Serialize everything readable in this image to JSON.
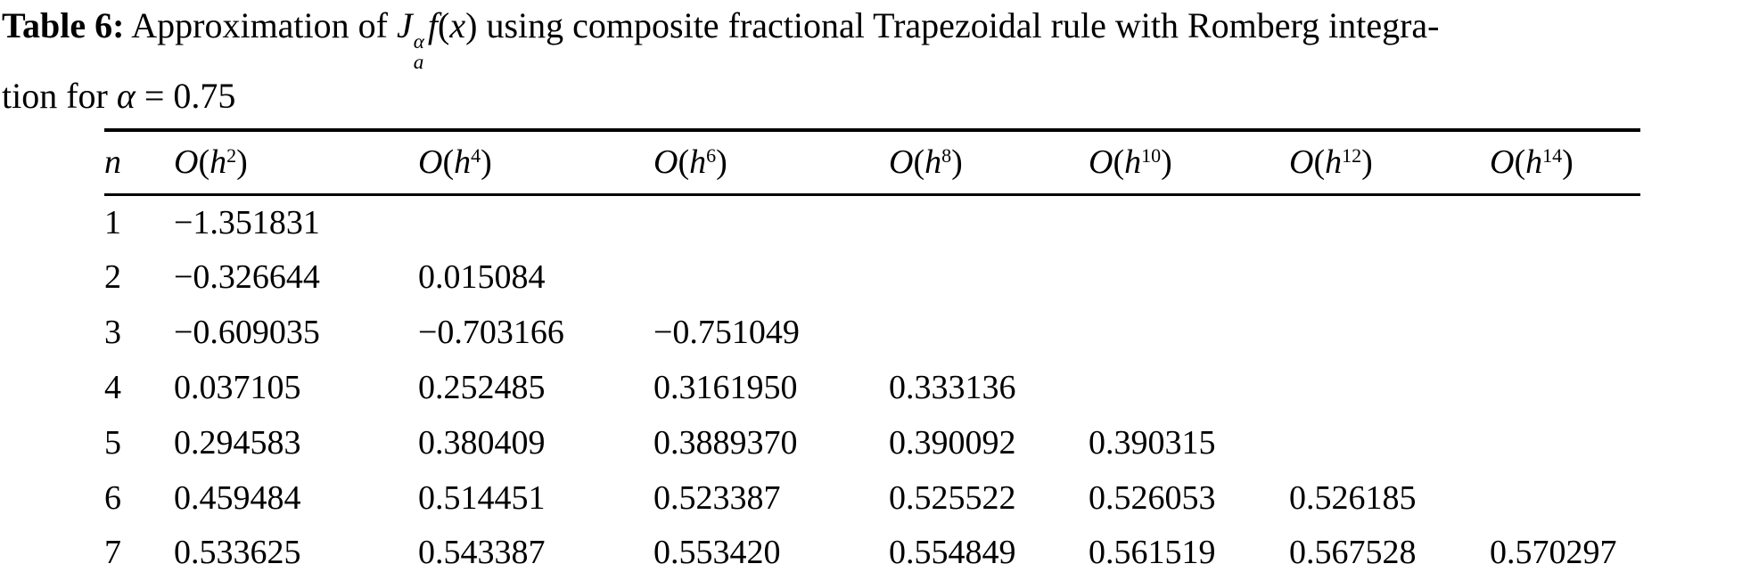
{
  "caption": {
    "label": "Table 6:",
    "line1_before_math": " Approximation of ",
    "math": {
      "base": "J",
      "sup": "α",
      "sub": "a",
      "func": "f",
      "arg_open": "(",
      "arg": "x",
      "arg_close": ")"
    },
    "line1_after_math": " using composite fractional Trapezoidal rule with Romberg integra-",
    "line2_before_alpha": "tion for ",
    "alpha": "α",
    "line2_after_alpha": " = 0.75"
  },
  "table": {
    "headers": [
      {
        "var": "n"
      },
      {
        "bigO": "O",
        "open": "(",
        "h": "h",
        "sup": "2",
        "close": ")"
      },
      {
        "bigO": "O",
        "open": "(",
        "h": "h",
        "sup": "4",
        "close": ")"
      },
      {
        "bigO": "O",
        "open": "(",
        "h": "h",
        "sup": "6",
        "close": ")"
      },
      {
        "bigO": "O",
        "open": "(",
        "h": "h",
        "sup": "8",
        "close": ")"
      },
      {
        "bigO": "O",
        "open": "(",
        "h": "h",
        "sup": "10",
        "close": ")"
      },
      {
        "bigO": "O",
        "open": "(",
        "h": "h",
        "sup": "12",
        "close": ")"
      },
      {
        "bigO": "O",
        "open": "(",
        "h": "h",
        "sup": "14",
        "close": ")"
      }
    ],
    "rows": [
      {
        "n": "1",
        "values": [
          "−1.351831",
          "",
          "",
          "",
          "",
          "",
          ""
        ]
      },
      {
        "n": "2",
        "values": [
          "−0.326644",
          "0.015084",
          "",
          "",
          "",
          "",
          ""
        ]
      },
      {
        "n": "3",
        "values": [
          "−0.609035",
          "−0.703166",
          "−0.751049",
          "",
          "",
          "",
          ""
        ]
      },
      {
        "n": "4",
        "values": [
          "0.037105",
          "0.252485",
          "0.3161950",
          "0.333136",
          "",
          "",
          ""
        ]
      },
      {
        "n": "5",
        "values": [
          "0.294583",
          "0.380409",
          "0.3889370",
          "0.390092",
          "0.390315",
          "",
          ""
        ]
      },
      {
        "n": "6",
        "values": [
          "0.459484",
          "0.514451",
          "0.523387",
          "0.525522",
          "0.526053",
          "0.526185",
          ""
        ]
      },
      {
        "n": "7",
        "values": [
          "0.533625",
          "0.543387",
          "0.553420",
          "0.554849",
          "0.561519",
          "0.567528",
          "0.570297"
        ]
      }
    ]
  },
  "colors": {
    "text": "#000000",
    "background": "#ffffff",
    "rule": "#000000"
  }
}
